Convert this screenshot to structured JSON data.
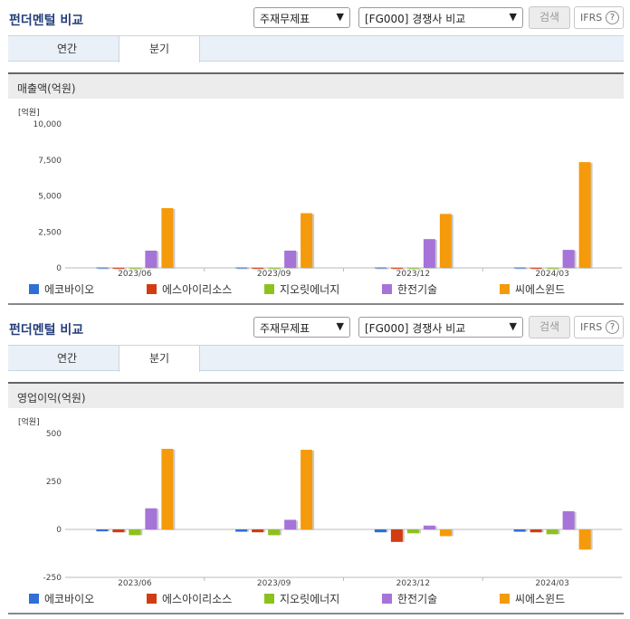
{
  "companies": [
    {
      "name": "에코바이오",
      "color": "#2f6fd6"
    },
    {
      "name": "에스아이리소스",
      "color": "#d23c12"
    },
    {
      "name": "지오릿에너지",
      "color": "#8cc21e"
    },
    {
      "name": "한전기술",
      "color": "#a673d9"
    },
    {
      "name": "씨에스윈드",
      "color": "#f59a0b"
    }
  ],
  "panels": [
    {
      "title": "펀더멘털 비교",
      "select_statement": "주재무제표",
      "select_compare": "[FG000] 경쟁사 비교",
      "search_label": "검색",
      "ifrs_label": "IFRS",
      "ifrs_help": "?",
      "tabs": [
        {
          "label": "연간"
        },
        {
          "label": "분기"
        }
      ],
      "active_tab": 1,
      "subtitle": "매출액(억원)",
      "unit": "[억원]"
    },
    {
      "title": "펀더멘털 비교",
      "select_statement": "주재무제표",
      "select_compare": "[FG000] 경쟁사 비교",
      "search_label": "검색",
      "ifrs_label": "IFRS",
      "ifrs_help": "?",
      "tabs": [
        {
          "label": "연간"
        },
        {
          "label": "분기"
        }
      ],
      "active_tab": 1,
      "subtitle": "영업이익(억원)",
      "unit": "[억원]"
    }
  ],
  "chart_data": [
    {
      "type": "bar",
      "title": "매출액(억원)",
      "ylabel": "[억원]",
      "ylim": [
        0,
        10000
      ],
      "yticks": [
        0,
        2500,
        5000,
        7500,
        10000
      ],
      "ytick_labels": [
        "0",
        "2,500",
        "5,000",
        "7,500",
        "10,000"
      ],
      "categories": [
        "2023/06",
        "2023/09",
        "2023/12",
        "2024/03"
      ],
      "series": [
        {
          "name": "에코바이오",
          "values": [
            30,
            30,
            30,
            30
          ]
        },
        {
          "name": "에스아이리소스",
          "values": [
            10,
            10,
            10,
            10
          ]
        },
        {
          "name": "지오릿에너지",
          "values": [
            15,
            15,
            15,
            15
          ]
        },
        {
          "name": "한전기술",
          "values": [
            1200,
            1200,
            2000,
            1250
          ]
        },
        {
          "name": "씨에스윈드",
          "values": [
            4150,
            3800,
            3750,
            7350
          ]
        }
      ],
      "legend": "bottom",
      "grid": false
    },
    {
      "type": "bar",
      "title": "영업이익(억원)",
      "ylabel": "[억원]",
      "ylim": [
        -250,
        500
      ],
      "yticks": [
        -250,
        0,
        250,
        500
      ],
      "ytick_labels": [
        "-250",
        "0",
        "250",
        "500"
      ],
      "categories": [
        "2023/06",
        "2023/09",
        "2023/12",
        "2024/03"
      ],
      "series": [
        {
          "name": "에코바이오",
          "values": [
            -10,
            -12,
            -15,
            -12
          ]
        },
        {
          "name": "에스아이리소스",
          "values": [
            -15,
            -15,
            -65,
            -15
          ]
        },
        {
          "name": "지오릿에너지",
          "values": [
            -30,
            -30,
            -20,
            -25
          ]
        },
        {
          "name": "한전기술",
          "values": [
            110,
            50,
            20,
            95
          ]
        },
        {
          "name": "씨에스윈드",
          "values": [
            420,
            415,
            -35,
            -105
          ]
        }
      ],
      "legend": "bottom",
      "grid": false
    }
  ]
}
